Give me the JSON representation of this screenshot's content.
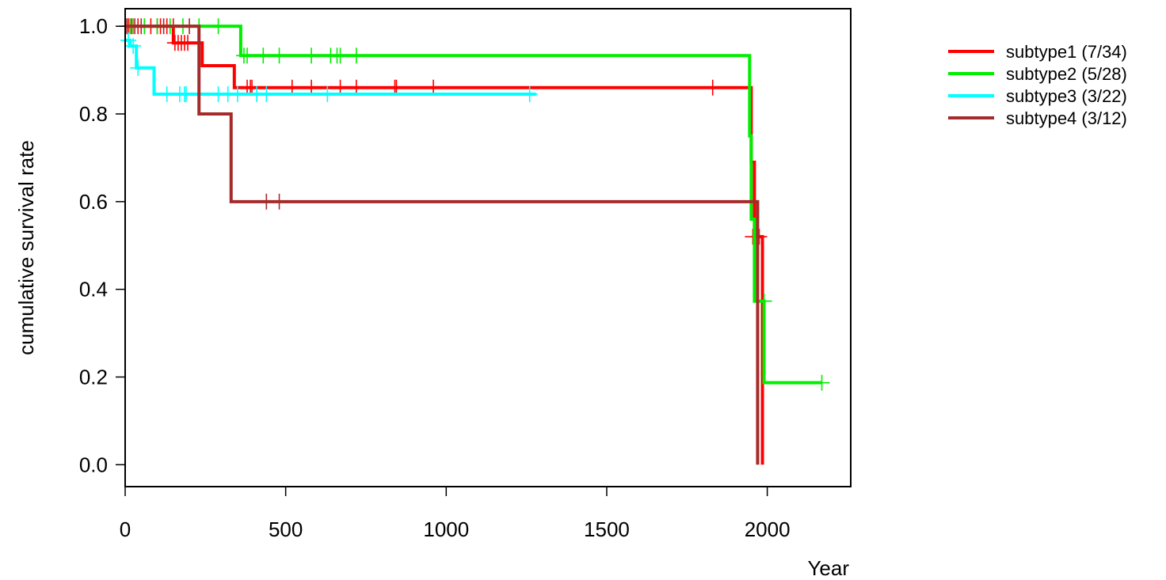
{
  "chart_data": {
    "type": "line",
    "subtype": "kaplan-meier survival curve (step)",
    "xlabel": "Year",
    "ylabel": "cumulative survival rate",
    "xlim": [
      0,
      2260
    ],
    "ylim": [
      -0.05,
      1.04
    ],
    "x_ticks": [
      0,
      500,
      1000,
      1500,
      2000
    ],
    "y_ticks": [
      0.0,
      0.2,
      0.4,
      0.6,
      0.8,
      1.0
    ],
    "x_tick_labels": [
      "0",
      "500",
      "1000",
      "1500",
      "2000"
    ],
    "y_tick_labels": [
      "0.0",
      "0.2",
      "0.4",
      "0.6",
      "0.8",
      "1.0"
    ],
    "grid": false,
    "legend_position": "right-top, outside plot",
    "series": [
      {
        "name": "subtype1 (7/34)",
        "color": "#ff0000",
        "steps": [
          [
            0,
            1.0
          ],
          [
            150,
            0.962
          ],
          [
            240,
            0.91
          ],
          [
            340,
            0.86
          ],
          [
            1950,
            0.69
          ],
          [
            1960,
            0.52
          ],
          [
            1985,
            0.0
          ]
        ],
        "end_x": 1985,
        "censor": [
          [
            10,
            1.0
          ],
          [
            20,
            1.0
          ],
          [
            40,
            1.0
          ],
          [
            60,
            1.0
          ],
          [
            80,
            1.0
          ],
          [
            100,
            1.0
          ],
          [
            110,
            1.0
          ],
          [
            130,
            1.0
          ],
          [
            150,
            1.0
          ],
          [
            155,
            0.962
          ],
          [
            165,
            0.962
          ],
          [
            175,
            0.962
          ],
          [
            185,
            0.962
          ],
          [
            195,
            0.962
          ],
          [
            380,
            0.86
          ],
          [
            390,
            0.86
          ],
          [
            395,
            0.86
          ],
          [
            520,
            0.86
          ],
          [
            580,
            0.86
          ],
          [
            670,
            0.86
          ],
          [
            720,
            0.86
          ],
          [
            840,
            0.86
          ],
          [
            845,
            0.86
          ],
          [
            960,
            0.86
          ],
          [
            1830,
            0.86
          ],
          [
            1955,
            0.52
          ],
          [
            1975,
            0.52
          ]
        ]
      },
      {
        "name": "subtype2 (5/28)",
        "color": "#00ee00",
        "steps": [
          [
            0,
            1.0
          ],
          [
            360,
            0.933
          ],
          [
            1945,
            0.75
          ],
          [
            1950,
            0.56
          ],
          [
            1960,
            0.373
          ],
          [
            1990,
            0.187
          ]
        ],
        "end_x": 2170,
        "censor": [
          [
            15,
            1.0
          ],
          [
            25,
            1.0
          ],
          [
            60,
            1.0
          ],
          [
            100,
            1.0
          ],
          [
            140,
            1.0
          ],
          [
            180,
            1.0
          ],
          [
            230,
            1.0
          ],
          [
            290,
            1.0
          ],
          [
            370,
            0.933
          ],
          [
            380,
            0.933
          ],
          [
            430,
            0.933
          ],
          [
            480,
            0.933
          ],
          [
            580,
            0.933
          ],
          [
            640,
            0.933
          ],
          [
            660,
            0.933
          ],
          [
            670,
            0.933
          ],
          [
            720,
            0.933
          ],
          [
            1990,
            0.373
          ],
          [
            2170,
            0.187
          ]
        ]
      },
      {
        "name": "subtype3 (3/22)",
        "color": "#00ffff",
        "steps": [
          [
            0,
            0.968
          ],
          [
            15,
            0.955
          ],
          [
            35,
            0.905
          ],
          [
            90,
            0.845
          ]
        ],
        "end_x": 1280,
        "censor": [
          [
            10,
            0.968
          ],
          [
            25,
            0.955
          ],
          [
            40,
            0.905
          ],
          [
            130,
            0.845
          ],
          [
            170,
            0.845
          ],
          [
            185,
            0.845
          ],
          [
            190,
            0.845
          ],
          [
            290,
            0.845
          ],
          [
            320,
            0.845
          ],
          [
            350,
            0.845
          ],
          [
            410,
            0.845
          ],
          [
            440,
            0.845
          ],
          [
            630,
            0.845
          ],
          [
            1260,
            0.845
          ]
        ]
      },
      {
        "name": "subtype4 (3/12)",
        "color": "#a52a2a",
        "steps": [
          [
            0,
            1.0
          ],
          [
            230,
            0.8
          ],
          [
            330,
            0.6
          ],
          [
            1970,
            0.0
          ]
        ],
        "end_x": 1970,
        "censor": [
          [
            5,
            1.0
          ],
          [
            30,
            1.0
          ],
          [
            50,
            1.0
          ],
          [
            120,
            1.0
          ],
          [
            200,
            1.0
          ],
          [
            440,
            0.6
          ],
          [
            480,
            0.6
          ]
        ]
      }
    ]
  }
}
